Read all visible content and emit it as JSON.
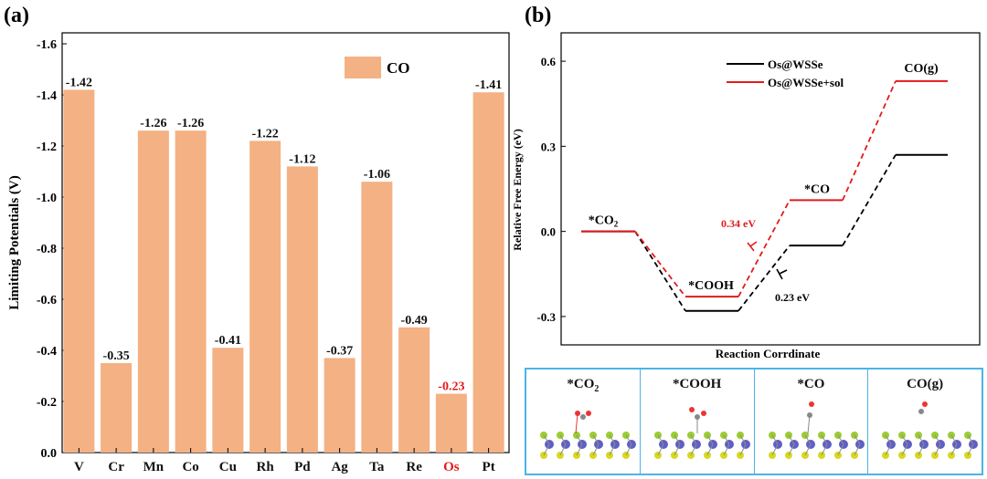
{
  "panel_a": {
    "label": "(a)"
  },
  "panel_b": {
    "label": "(b)"
  },
  "chart_data": [
    {
      "type": "bar",
      "title": "",
      "ylabel": "Limiting Potentials (V)",
      "xlabel": "",
      "categories": [
        "V",
        "Cr",
        "Mn",
        "Co",
        "Cu",
        "Rh",
        "Pd",
        "Ag",
        "Ta",
        "Re",
        "Os",
        "Pt"
      ],
      "series": [
        {
          "name": "CO",
          "values": [
            -1.42,
            -0.35,
            -1.26,
            -1.26,
            -0.41,
            -1.22,
            -1.12,
            -0.37,
            -1.06,
            -0.49,
            -0.23,
            -1.41
          ]
        }
      ],
      "value_labels": [
        "-1.42",
        "-0.35",
        "-1.26",
        "-1.26",
        "-0.41",
        "-1.22",
        "-1.12",
        "-0.37",
        "-1.06",
        "-0.49",
        "-0.23",
        "-1.41"
      ],
      "yticks": [
        "0.0",
        "-0.2",
        "-0.4",
        "-0.6",
        "-0.8",
        "-1.0",
        "-1.2",
        "-1.4",
        "-1.6"
      ],
      "ylim": [
        0,
        -1.6
      ],
      "axis_inverted": true,
      "highlight_category": "Os",
      "colors": {
        "bar": "#f4b183",
        "highlight_text": "#e31a1c"
      },
      "legend_position": "top-right"
    },
    {
      "type": "line",
      "title": "",
      "ylabel": "Relative Free Energy (eV)",
      "xlabel": "Reaction Corrdinate",
      "yticks": [
        "-0.3",
        "0.0",
        "0.3",
        "0.6"
      ],
      "ylim": [
        -0.4,
        0.7
      ],
      "states": [
        "*CO2",
        "*COOH",
        "*CO",
        "CO(g)"
      ],
      "state_labels": [
        "*CO",
        "*COOH",
        "*CO",
        "CO(g)"
      ],
      "series": [
        {
          "name": "Os@WSSe",
          "color": "#000000",
          "values": [
            0.0,
            -0.28,
            -0.05,
            0.27
          ]
        },
        {
          "name": "Os@WSSe+sol",
          "color": "#e31a1c",
          "values": [
            0.0,
            -0.23,
            0.11,
            0.53
          ]
        }
      ],
      "annotations": [
        {
          "text": "0.34 eV",
          "color": "#e31a1c"
        },
        {
          "text": "0.23 eV",
          "color": "#000000"
        }
      ],
      "legend_position": "top-left"
    }
  ],
  "structures": {
    "labels": [
      "*CO",
      "*COOH",
      "*CO",
      "CO(g)"
    ]
  }
}
